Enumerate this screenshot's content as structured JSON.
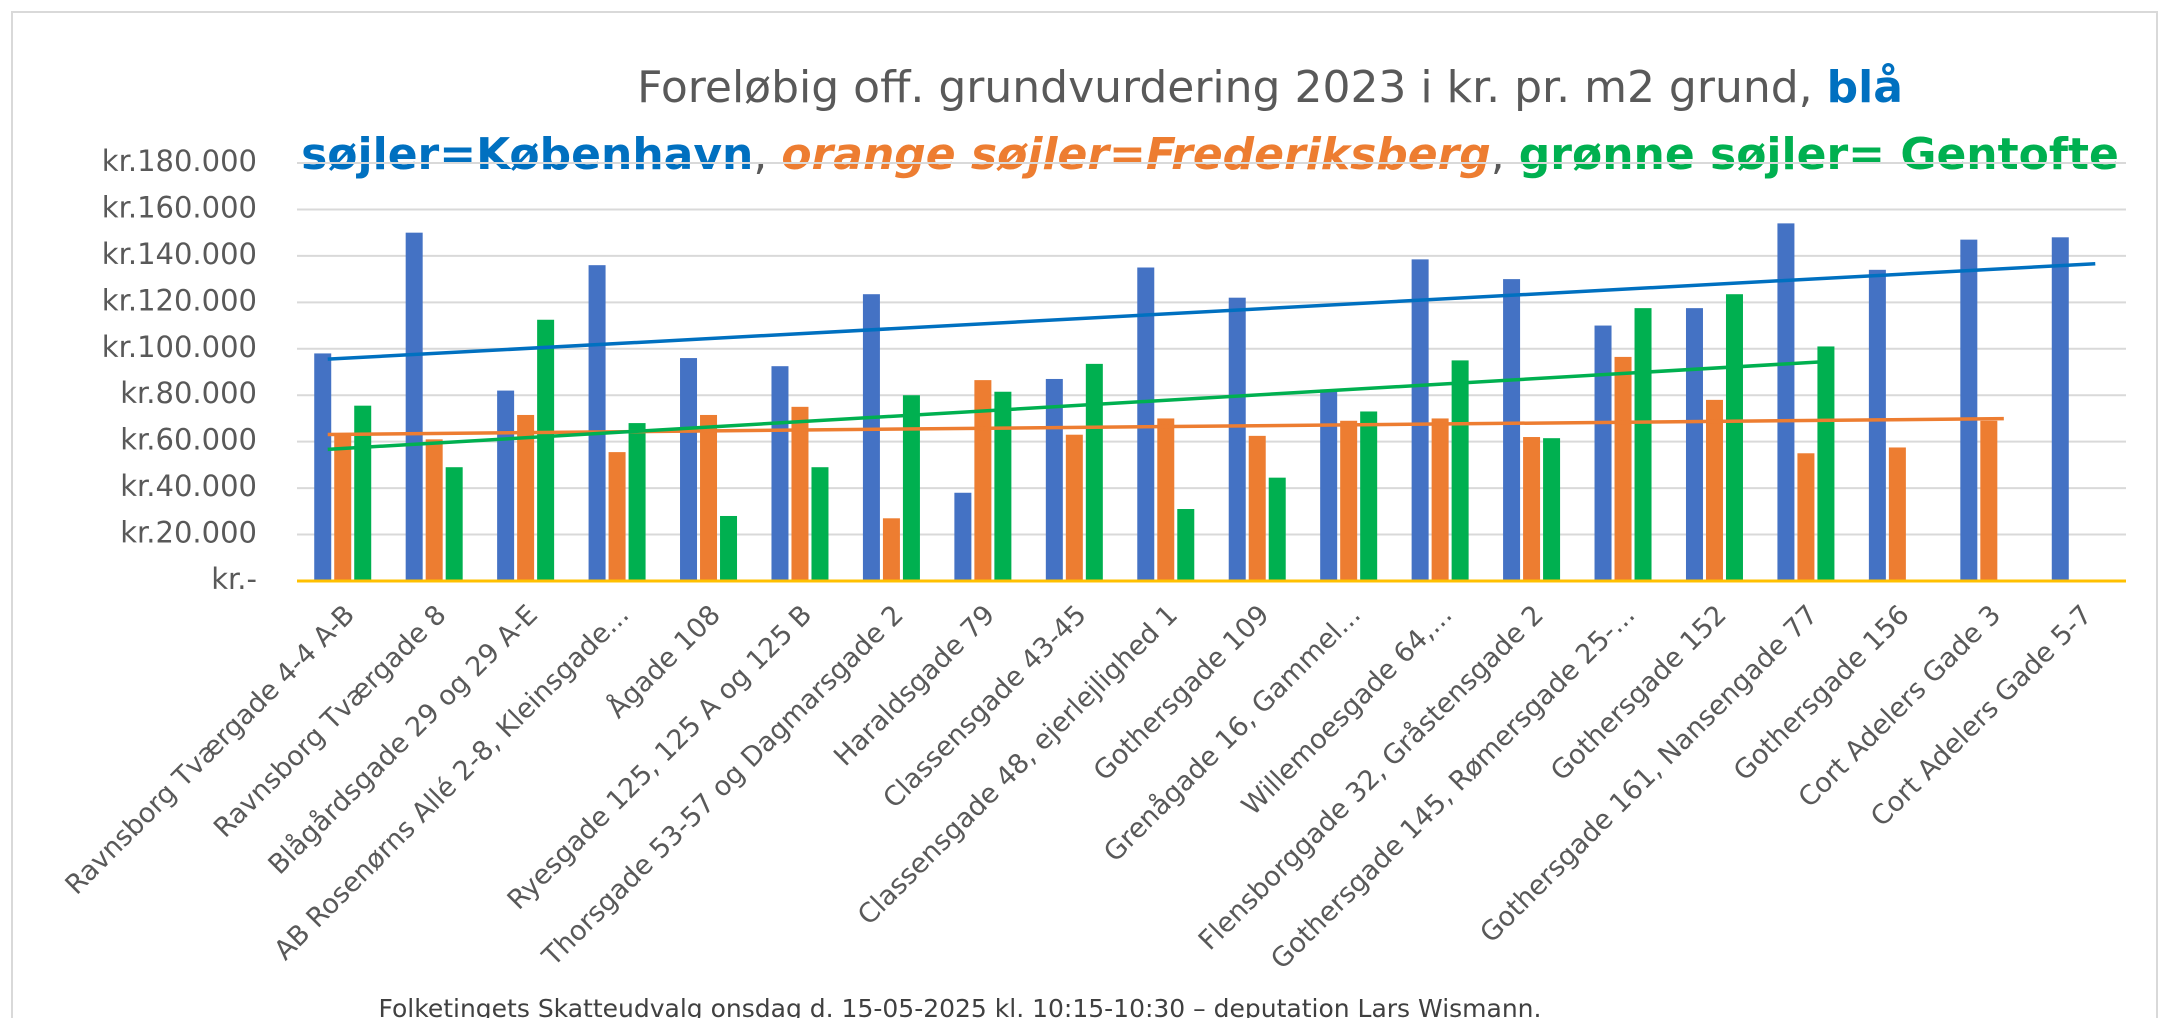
{
  "chart_data": {
    "type": "bar",
    "title_lines": [
      [
        {
          "text": "Foreløbig off. grundvurdering 2023 i kr. pr. m2 grund, ",
          "color": "#595959"
        },
        {
          "text": "blå",
          "color": "#0070c0",
          "bold": true
        }
      ],
      [
        {
          "text": "søjler=København",
          "color": "#0070c0",
          "bold": true
        },
        {
          "text": ", ",
          "color": "#595959"
        },
        {
          "text": "orange søjler=Frederiksberg",
          "color": "#ed7d31",
          "bold": true,
          "italic": true
        },
        {
          "text": ", ",
          "color": "#595959"
        },
        {
          "text": "grønne søjler= Gentofte",
          "color": "#00b050",
          "bold": true
        }
      ]
    ],
    "footer": "Folketingets Skatteudvalg onsdag d. 15-05-2025 kl. 10:15-10:30 – deputation Lars Wismann.",
    "categories": [
      "Ravnsborg Tværgade 4-4 A-B",
      "Ravnsborg Tværgade 8",
      "Blågårdsgade 29 og 29 A-E",
      "AB Rosenørns Allé 2-8, Kleinsgade...",
      "Ågade 108",
      "Ryesgade 125, 125 A og 125 B",
      "Thorsgade 53-57 og Dagmarsgade 2",
      "Haraldsgade 79",
      "Classensgade 43-45",
      "Classensgade 48, ejerlejlighed 1",
      "Gothersgade 109",
      "Grenågade 16, Gammel...",
      "Willemoesgade 64,...",
      "Flensborggade 32, Gråstensgade 2",
      "Gothersgade 145, Rømersgade 25-...",
      "Gothersgade 152",
      "Gothersgade 161, Nansengade 77",
      "Gothersgade 156",
      "Cort Adelers Gade 3",
      "Cort Adelers Gade 5-7"
    ],
    "series": [
      {
        "color": "#4472c4",
        "trend_color": "#0070c0",
        "values": [
          98000,
          150000,
          82000,
          136000,
          96000,
          92500,
          123500,
          38000,
          87000,
          135000,
          122000,
          82500,
          138500,
          130000,
          110000,
          117500,
          154000,
          134000,
          147000,
          148000
        ]
      },
      {
        "color": "#ed7d31",
        "trend_color": "#ed7d31",
        "values": [
          63000,
          61000,
          71500,
          55500,
          71500,
          75000,
          27000,
          86500,
          63000,
          70000,
          62500,
          69000,
          70000,
          62000,
          96500,
          78000,
          55000,
          57500,
          69000,
          null
        ]
      },
      {
        "color": "#00b050",
        "trend_color": "#00b050",
        "values": [
          75500,
          49000,
          112500,
          68000,
          28000,
          49000,
          80000,
          81500,
          93500,
          31000,
          44500,
          73000,
          95000,
          61500,
          117500,
          123500,
          101000,
          null,
          null,
          null
        ]
      }
    ],
    "trendline": true,
    "ylim": [
      0,
      180000
    ],
    "yticks": [
      {
        "value": 0,
        "label": "kr.-"
      },
      {
        "value": 20000,
        "label": "kr.20.000"
      },
      {
        "value": 40000,
        "label": "kr.40.000"
      },
      {
        "value": 60000,
        "label": "kr.60.000"
      },
      {
        "value": 80000,
        "label": "kr.80.000"
      },
      {
        "value": 100000,
        "label": "kr.100.000"
      },
      {
        "value": 120000,
        "label": "kr.120.000"
      },
      {
        "value": 140000,
        "label": "kr.140.000"
      },
      {
        "value": 160000,
        "label": "kr.160.000"
      },
      {
        "value": 180000,
        "label": "kr.180.000"
      }
    ],
    "grid": true
  }
}
